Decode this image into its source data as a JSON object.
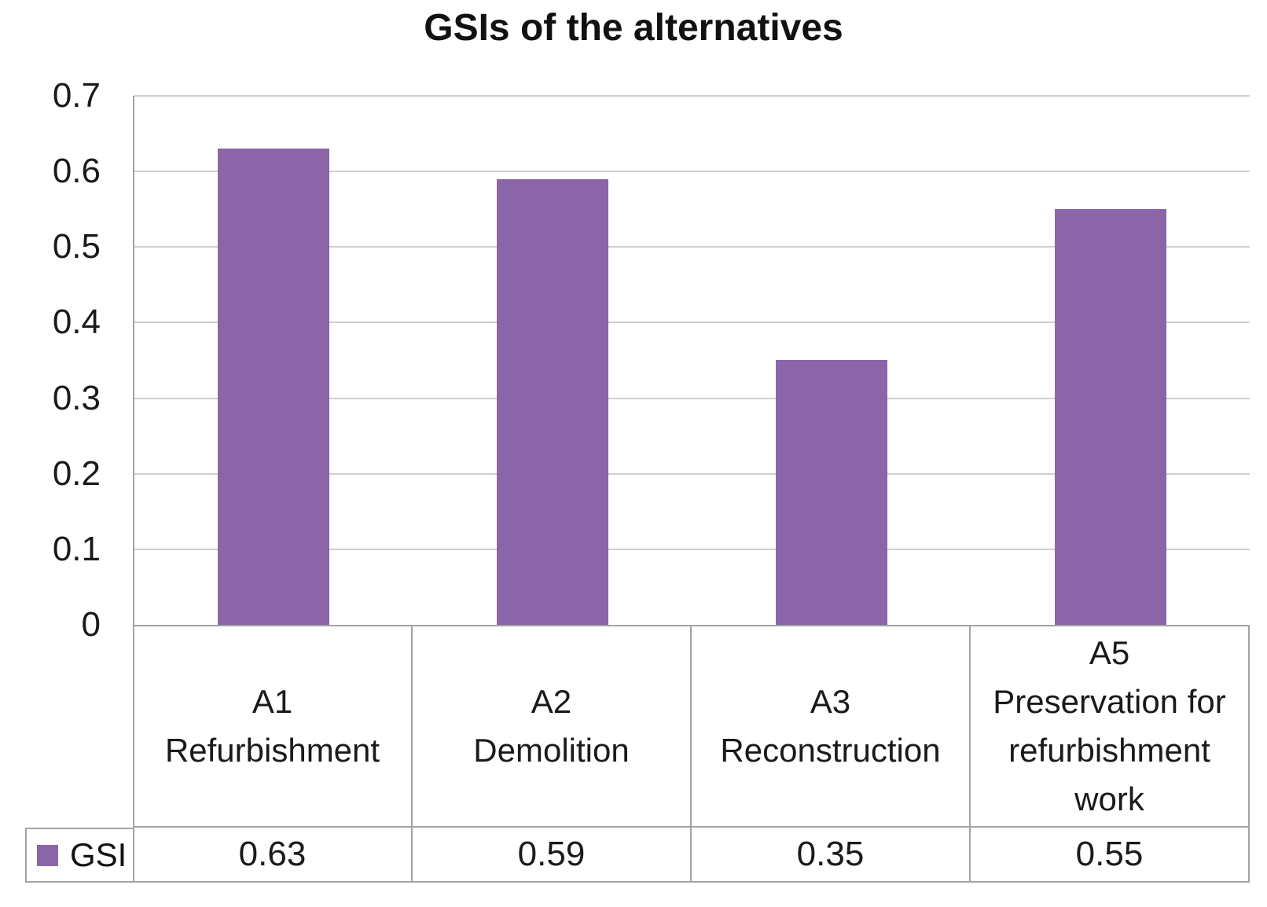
{
  "chart_data": {
    "type": "bar",
    "title": "GSIs of the alternatives",
    "series_name": "GSI",
    "categories": [
      [
        "A1",
        "Refurbishment"
      ],
      [
        "A2",
        "Demolition"
      ],
      [
        "A3",
        "Reconstruction"
      ],
      [
        "A5",
        "Preservation for",
        "refurbishment",
        "work"
      ]
    ],
    "values": [
      0.63,
      0.59,
      0.35,
      0.55
    ],
    "value_labels": [
      "0.63",
      "0.59",
      "0.35",
      "0.55"
    ],
    "y_ticks": [
      "0.7",
      "0.6",
      "0.5",
      "0.4",
      "0.3",
      "0.2",
      "0.1",
      "0"
    ],
    "ylim": [
      0,
      0.7
    ],
    "grid": "horizontal",
    "legend_position": "data-table-left",
    "bar_color": "#8a66a9",
    "gridline_color": "#cfcfcf",
    "border_color": "#a3a3a3",
    "text_color": "#1a1a1a"
  }
}
